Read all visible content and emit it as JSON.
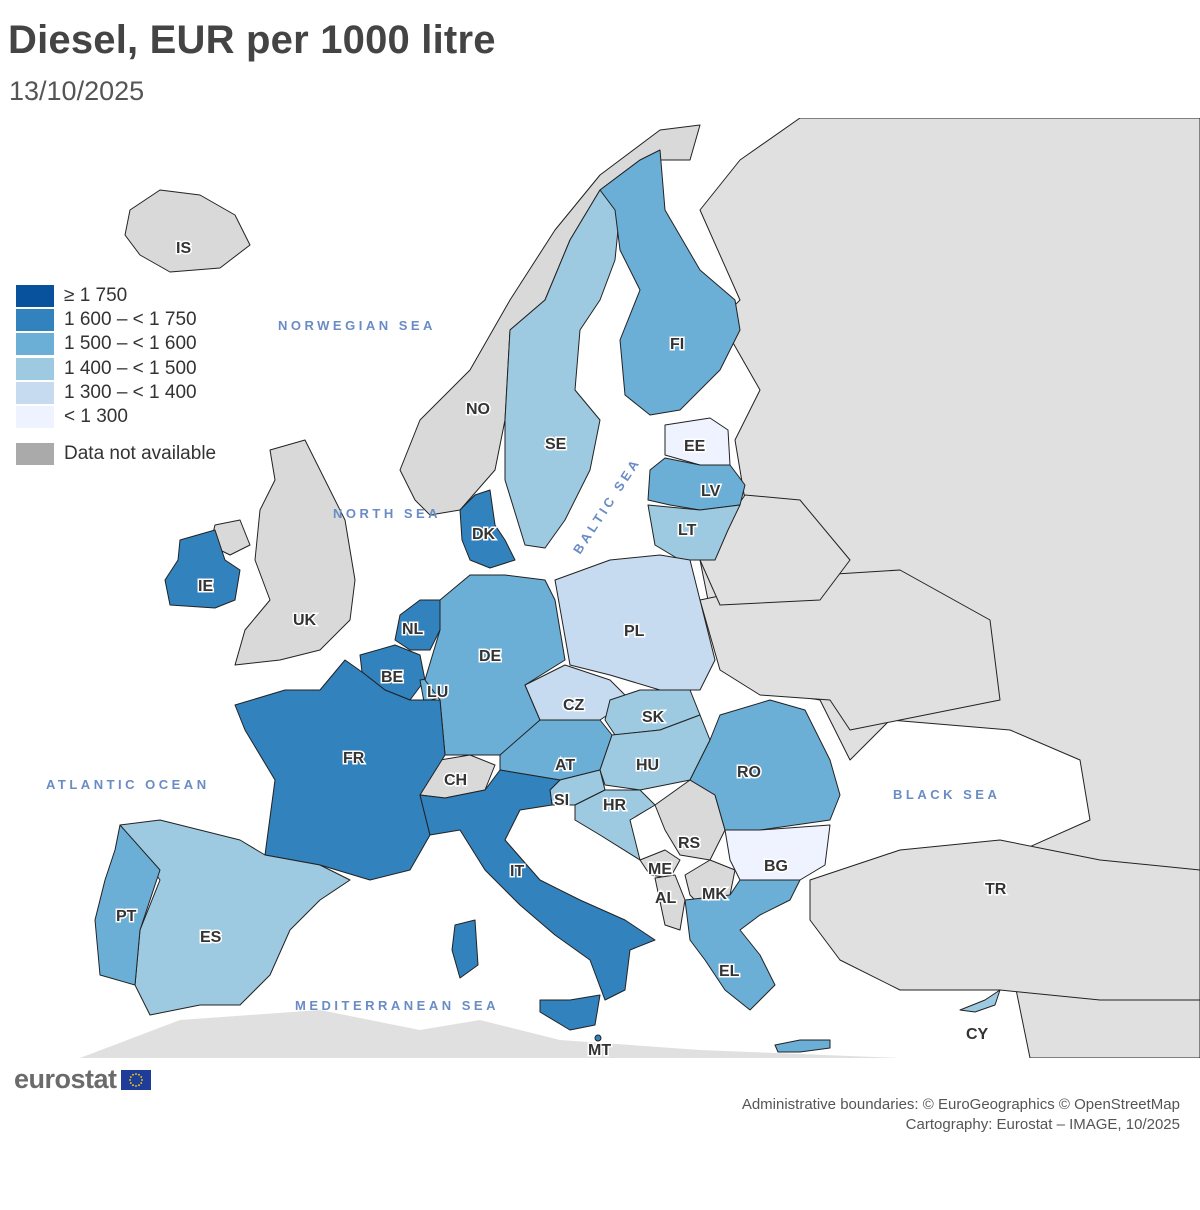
{
  "title": "Diesel, EUR per 1000 litre",
  "subtitle": "13/10/2025",
  "legend": {
    "classes": [
      {
        "label": "≥ 1 750",
        "color": "#08519c"
      },
      {
        "label": "1 600 – < 1 750",
        "color": "#3182bd"
      },
      {
        "label": "1 500 – < 1 600",
        "color": "#6baed6"
      },
      {
        "label": "1 400 – < 1 500",
        "color": "#9ecae1"
      },
      {
        "label": "1 300 – < 1 400",
        "color": "#c6dbef"
      },
      {
        "label": "< 1 300",
        "color": "#eff3ff"
      }
    ],
    "na": {
      "label": "Data not available",
      "color": "#aaaaaa"
    }
  },
  "colors": {
    "sea": "#ffffff",
    "non_eu_land": "#e0e0e0",
    "na_land": "#d9d9d9"
  },
  "seas": {
    "norwegian": "NORWEGIAN SEA",
    "north": "NORTH SEA",
    "baltic": "BALTIC SEA",
    "atlantic": "ATLANTIC OCEAN",
    "black": "BLACK SEA",
    "mediterranean": "MEDITERRANEAN SEA"
  },
  "countries": {
    "IS": {
      "label": "IS",
      "class": "na"
    },
    "NO": {
      "label": "NO",
      "class": "na"
    },
    "UK": {
      "label": "UK",
      "class": "na"
    },
    "CH": {
      "label": "CH",
      "class": "na"
    },
    "RS": {
      "label": "RS",
      "class": "na"
    },
    "ME": {
      "label": "ME",
      "class": "na"
    },
    "AL": {
      "label": "AL",
      "class": "na"
    },
    "MK": {
      "label": "MK",
      "class": "na"
    },
    "TR": {
      "label": "TR",
      "class": "na"
    },
    "IE": {
      "label": "IE",
      "class": "1 600 – < 1 750"
    },
    "DK": {
      "label": "DK",
      "class": "1 600 – < 1 750"
    },
    "NL": {
      "label": "NL",
      "class": "1 600 – < 1 750"
    },
    "BE": {
      "label": "BE",
      "class": "1 600 – < 1 750"
    },
    "FR": {
      "label": "FR",
      "class": "1 600 – < 1 750"
    },
    "IT": {
      "label": "IT",
      "class": "1 600 – < 1 750"
    },
    "FI": {
      "label": "FI",
      "class": "1 500 – < 1 600"
    },
    "LV": {
      "label": "LV",
      "class": "1 500 – < 1 600"
    },
    "DE": {
      "label": "DE",
      "class": "1 500 – < 1 600"
    },
    "LU": {
      "label": "LU",
      "class": "1 500 – < 1 600"
    },
    "AT": {
      "label": "AT",
      "class": "1 500 – < 1 600"
    },
    "RO": {
      "label": "RO",
      "class": "1 500 – < 1 600"
    },
    "PT": {
      "label": "PT",
      "class": "1 500 – < 1 600"
    },
    "EL": {
      "label": "EL",
      "class": "1 500 – < 1 600"
    },
    "SE": {
      "label": "SE",
      "class": "1 400 – < 1 500"
    },
    "LT": {
      "label": "LT",
      "class": "1 400 – < 1 500"
    },
    "SK": {
      "label": "SK",
      "class": "1 400 – < 1 500"
    },
    "HU": {
      "label": "HU",
      "class": "1 400 – < 1 500"
    },
    "SI": {
      "label": "SI",
      "class": "1 400 – < 1 500"
    },
    "HR": {
      "label": "HR",
      "class": "1 400 – < 1 500"
    },
    "ES": {
      "label": "ES",
      "class": "1 400 – < 1 500"
    },
    "CY": {
      "label": "CY",
      "class": "1 400 – < 1 500"
    },
    "PL": {
      "label": "PL",
      "class": "1 300 – < 1 400"
    },
    "CZ": {
      "label": "CZ",
      "class": "1 300 – < 1 400"
    },
    "EE": {
      "label": "EE",
      "class": "< 1 300"
    },
    "BG": {
      "label": "BG",
      "class": "< 1 300"
    },
    "MT": {
      "label": "MT",
      "class": "1 600 – < 1 750"
    }
  },
  "logo": {
    "text": "eurostat"
  },
  "credits": {
    "line1": "Administrative boundaries: © EuroGeographics © OpenStreetMap",
    "line2": "Cartography: Eurostat – IMAGE, 10/2025"
  }
}
